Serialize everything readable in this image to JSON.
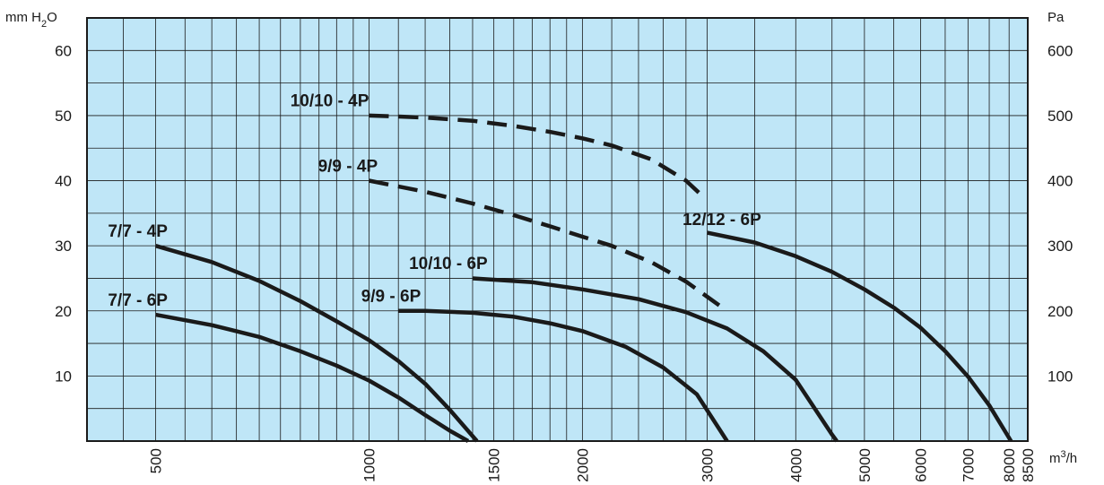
{
  "chart_data": {
    "type": "line",
    "y_unit_left": "mm H2O",
    "y_unit_right": "Pa",
    "x_unit": "m3/h",
    "x_scale": "log",
    "x_range": [
      400,
      8500
    ],
    "y_range": [
      0,
      65
    ],
    "y_range_right": [
      0,
      650
    ],
    "grid": true,
    "colors": {
      "plot_background": "#bfe6f7",
      "grid": "#1a1a1a",
      "curve": "#1a1a1a"
    },
    "x_ticks": [
      {
        "value": 500,
        "label": "500"
      },
      {
        "value": 1000,
        "label": "1000"
      },
      {
        "value": 1500,
        "label": "1500"
      },
      {
        "value": 2000,
        "label": "2000"
      },
      {
        "value": 3000,
        "label": "3000"
      },
      {
        "value": 4000,
        "label": "4000"
      },
      {
        "value": 5000,
        "label": "5000"
      },
      {
        "value": 6000,
        "label": "6000"
      },
      {
        "value": 7000,
        "label": "7000"
      },
      {
        "value": 8000,
        "label": "8000"
      },
      {
        "value": 8500,
        "label": "8500"
      }
    ],
    "y_ticks_left": [
      {
        "value": 10,
        "label": "10"
      },
      {
        "value": 20,
        "label": "20"
      },
      {
        "value": 30,
        "label": "30"
      },
      {
        "value": 40,
        "label": "40"
      },
      {
        "value": 50,
        "label": "50"
      },
      {
        "value": 60,
        "label": "60"
      }
    ],
    "y_ticks_right": [
      {
        "value": 10,
        "label": "100"
      },
      {
        "value": 20,
        "label": "200"
      },
      {
        "value": 30,
        "label": "300"
      },
      {
        "value": 40,
        "label": "400"
      },
      {
        "value": 50,
        "label": "500"
      },
      {
        "value": 60,
        "label": "600"
      }
    ],
    "series": [
      {
        "name": "7/7 - 6P",
        "style": "solid",
        "label_at": [
          470,
          20.4
        ],
        "points": [
          [
            500,
            19.4
          ],
          [
            600,
            17.8
          ],
          [
            700,
            16.0
          ],
          [
            800,
            13.8
          ],
          [
            900,
            11.6
          ],
          [
            1000,
            9.3
          ],
          [
            1100,
            6.7
          ],
          [
            1200,
            4.0
          ],
          [
            1300,
            1.6
          ],
          [
            1380,
            0
          ]
        ]
      },
      {
        "name": "7/7 - 4P",
        "style": "solid",
        "label_at": [
          470,
          31.0
        ],
        "points": [
          [
            500,
            30.0
          ],
          [
            600,
            27.5
          ],
          [
            700,
            24.6
          ],
          [
            800,
            21.5
          ],
          [
            900,
            18.4
          ],
          [
            1000,
            15.5
          ],
          [
            1100,
            12.3
          ],
          [
            1200,
            8.8
          ],
          [
            1300,
            4.8
          ],
          [
            1420,
            0
          ]
        ]
      },
      {
        "name": "9/9 - 6P",
        "style": "solid",
        "label_at": [
          1070,
          21.0
        ],
        "points": [
          [
            1100,
            20.0
          ],
          [
            1200,
            20.0
          ],
          [
            1400,
            19.7
          ],
          [
            1600,
            19.1
          ],
          [
            1800,
            18.1
          ],
          [
            2000,
            16.9
          ],
          [
            2300,
            14.5
          ],
          [
            2600,
            11.3
          ],
          [
            2900,
            7.2
          ],
          [
            3200,
            0
          ]
        ]
      },
      {
        "name": "10/10 - 6P",
        "style": "solid",
        "label_at": [
          1250,
          26.0
        ],
        "points": [
          [
            1400,
            25.0
          ],
          [
            1700,
            24.4
          ],
          [
            2000,
            23.3
          ],
          [
            2400,
            21.8
          ],
          [
            2800,
            19.8
          ],
          [
            3200,
            17.3
          ],
          [
            3600,
            13.8
          ],
          [
            4000,
            9.4
          ],
          [
            4500,
            1.0
          ],
          [
            4570,
            0
          ]
        ]
      },
      {
        "name": "12/12 - 6P",
        "style": "solid",
        "label_at": [
          3040,
          32.8
        ],
        "points": [
          [
            3000,
            32.0
          ],
          [
            3500,
            30.5
          ],
          [
            4000,
            28.4
          ],
          [
            4500,
            26.0
          ],
          [
            5000,
            23.3
          ],
          [
            5500,
            20.5
          ],
          [
            6000,
            17.4
          ],
          [
            6500,
            13.8
          ],
          [
            7000,
            9.9
          ],
          [
            7500,
            5.5
          ],
          [
            8050,
            0
          ]
        ]
      },
      {
        "name": "9/9 - 4P",
        "style": "dashed",
        "label_at": [
          930,
          41.0
        ],
        "points": [
          [
            1000,
            40.0
          ],
          [
            1200,
            38.3
          ],
          [
            1400,
            36.5
          ],
          [
            1600,
            34.7
          ],
          [
            1800,
            33.0
          ],
          [
            2000,
            31.4
          ],
          [
            2200,
            30.0
          ],
          [
            2500,
            27.5
          ],
          [
            2800,
            24.5
          ],
          [
            3200,
            20.0
          ]
        ]
      },
      {
        "name": "10/10 - 4P",
        "style": "dashed",
        "label_at": [
          850,
          51.0
        ],
        "points": [
          [
            1000,
            50.0
          ],
          [
            1200,
            49.7
          ],
          [
            1400,
            49.2
          ],
          [
            1600,
            48.4
          ],
          [
            1800,
            47.5
          ],
          [
            2000,
            46.5
          ],
          [
            2200,
            45.4
          ],
          [
            2500,
            43.3
          ],
          [
            2800,
            40.0
          ],
          [
            2950,
            37.7
          ]
        ]
      }
    ]
  }
}
